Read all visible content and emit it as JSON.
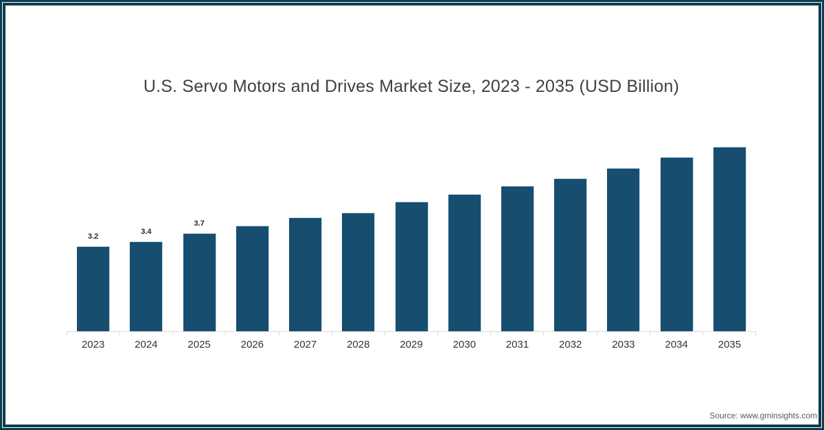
{
  "page": {
    "frame_color": "#0d3c4d",
    "background_color": "#ffffff",
    "title_color": "#404040",
    "axis_color": "#d9d9d9"
  },
  "chart": {
    "title": "U.S. Servo Motors and Drives Market Size, 2023 - 2035 (USD Billion)"
  },
  "chart_data": {
    "type": "bar",
    "title": "U.S. Servo Motors and Drives Market Size, 2023 - 2035 (USD Billion)",
    "unit": "USD Billion",
    "categories": [
      "2023",
      "2024",
      "2025",
      "2026",
      "2027",
      "2028",
      "2029",
      "2030",
      "2031",
      "2032",
      "2033",
      "2034",
      "2035"
    ],
    "values": [
      3.2,
      3.4,
      3.7,
      4.0,
      4.3,
      4.5,
      4.9,
      5.2,
      5.5,
      5.8,
      6.2,
      6.6,
      7.0
    ],
    "data_labels": [
      "3.2",
      "3.4",
      "3.7",
      "",
      "",
      "",
      "",
      "",
      "",
      "",
      "",
      "",
      ""
    ],
    "bar_color": "#174e70",
    "ylim": [
      0,
      7.5
    ],
    "grid": false,
    "legend": false,
    "y_axis_visible": false
  },
  "footer": {
    "source": "Source: www.gminsights.com"
  }
}
